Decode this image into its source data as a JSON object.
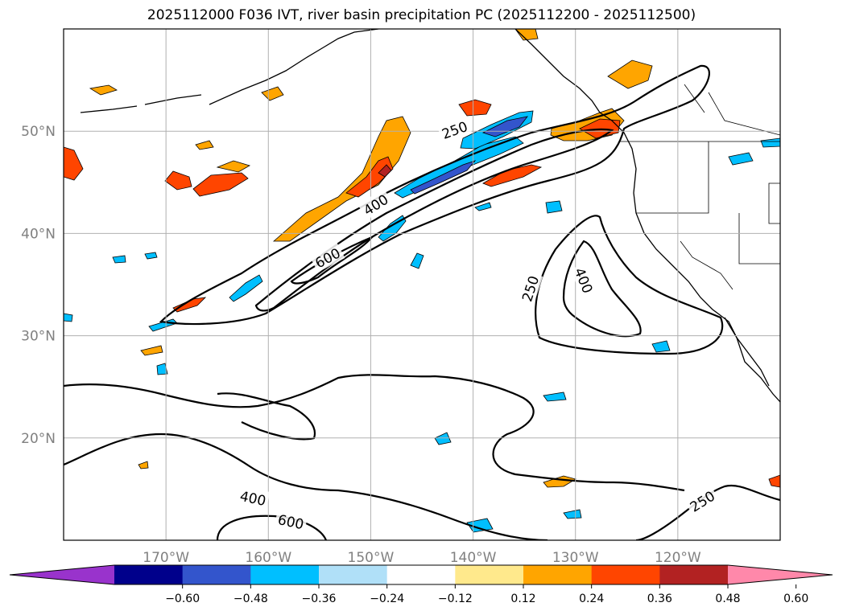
{
  "title": "2025112000 F036 IVT, river basin precipitation PC (2025112200 - 2025112500)",
  "map": {
    "lon_range": [
      -180,
      -110
    ],
    "lat_range": [
      10,
      60
    ],
    "lat_ticks": [
      {
        "value": 50,
        "label": "50°N"
      },
      {
        "value": 40,
        "label": "40°N"
      },
      {
        "value": 30,
        "label": "30°N"
      },
      {
        "value": 20,
        "label": "20°N"
      }
    ],
    "lon_ticks": [
      {
        "value": -170,
        "label": "170°W"
      },
      {
        "value": -160,
        "label": "160°W"
      },
      {
        "value": -150,
        "label": "150°W"
      },
      {
        "value": -140,
        "label": "140°W"
      },
      {
        "value": -130,
        "label": "130°W"
      },
      {
        "value": -120,
        "label": "120°W"
      }
    ],
    "ivt_contour_labels": [
      {
        "value": "250",
        "lon": -141.8,
        "lat": 50.1,
        "angle": -20
      },
      {
        "value": "400",
        "lon": -149.5,
        "lat": 42.8,
        "angle": -32
      },
      {
        "value": "600",
        "lon": -154.2,
        "lat": 37.6,
        "angle": -28
      },
      {
        "value": "250",
        "lon": -134.4,
        "lat": 34.6,
        "angle": -72
      },
      {
        "value": "400",
        "lon": -129.2,
        "lat": 35.4,
        "angle": 68
      },
      {
        "value": "400",
        "lon": -161.5,
        "lat": 14.1,
        "angle": 12
      },
      {
        "value": "600",
        "lon": -157.8,
        "lat": 11.8,
        "angle": 12
      },
      {
        "value": "250",
        "lon": -117.6,
        "lat": 13.8,
        "angle": -32
      }
    ]
  },
  "colorbar": {
    "colors": [
      "#9933cc",
      "#00008b",
      "#3355cc",
      "#00bfff",
      "#b0e0f8",
      "#ffffff",
      "#ffe98c",
      "#ffa500",
      "#ff4500",
      "#b22222",
      "#ff88aa"
    ],
    "ticks": [
      "−0.60",
      "−0.48",
      "−0.36",
      "−0.24",
      "−0.12",
      "0.12",
      "0.24",
      "0.36",
      "0.48",
      "0.60"
    ],
    "extend": "both"
  },
  "legend": {
    "colors": {
      "contour": "#000000",
      "grid": "#b0b0b0"
    }
  }
}
